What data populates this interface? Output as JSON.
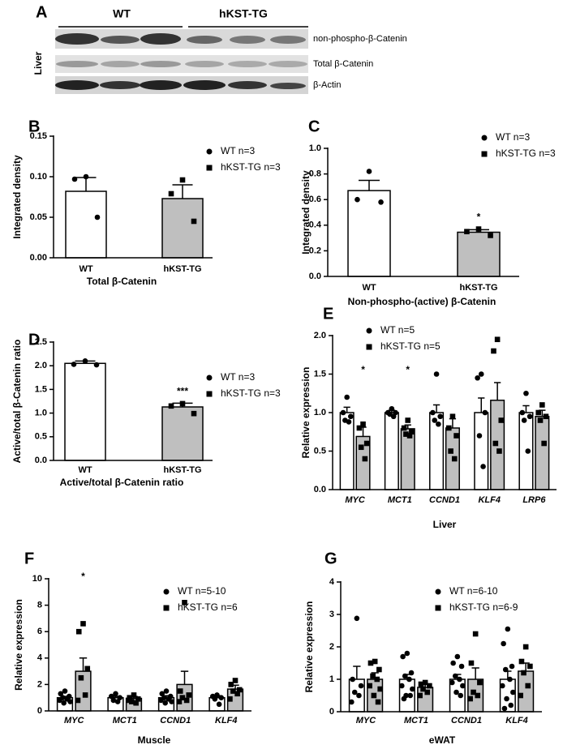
{
  "blot": {
    "panel": "A",
    "groups": [
      "WT",
      "hKST-TG"
    ],
    "tissue": "Liver",
    "bands": [
      "non-phospho-β-Catenin",
      "Total β-Catenin",
      "β-Actin"
    ]
  },
  "chart_data": [
    {
      "type": "bar",
      "panel": "B",
      "xlabel": "Total β-Catenin",
      "ylabel": "Integrated density",
      "categories": [
        "WT",
        "hKST-TG"
      ],
      "values": [
        0.082,
        0.073
      ],
      "errors": [
        0.017,
        0.017
      ],
      "points": [
        [
          0.1,
          0.097,
          0.05
        ],
        [
          0.096,
          0.079,
          0.045
        ]
      ],
      "colors": [
        "#ffffff",
        "#bfbfbf"
      ],
      "markers": [
        "circle",
        "square"
      ],
      "legend": [
        "WT n=3",
        "hKST-TG n=3"
      ],
      "ylim": [
        0,
        0.15
      ],
      "yticks": [
        {
          "value": 0,
          "label": "0.00"
        },
        {
          "value": 0.05,
          "label": "0.05"
        },
        {
          "value": 0.1,
          "label": "0.10"
        },
        {
          "value": 0.15,
          "label": "0.15"
        }
      ]
    },
    {
      "type": "bar",
      "panel": "C",
      "xlabel": "Non-phospho-(active)  β-Catenin",
      "ylabel": "Integrated density",
      "categories": [
        "WT",
        "hKST-TG"
      ],
      "values": [
        0.67,
        0.345
      ],
      "errors": [
        0.08,
        0.02
      ],
      "points": [
        [
          0.82,
          0.6,
          0.58
        ],
        [
          0.37,
          0.35,
          0.32
        ]
      ],
      "annotations": [
        null,
        "*"
      ],
      "colors": [
        "#ffffff",
        "#bfbfbf"
      ],
      "markers": [
        "circle",
        "square"
      ],
      "legend": [
        "WT n=3",
        "hKST-TG n=3"
      ],
      "ylim": [
        0,
        1
      ],
      "yticks": [
        {
          "value": 0,
          "label": "0.0"
        },
        0.2,
        0.4,
        0.6,
        0.8,
        {
          "value": 1,
          "label": "1.0"
        }
      ]
    },
    {
      "type": "bar",
      "panel": "D",
      "xlabel": "Active/total β-Catenin ratio",
      "ylabel": "Active/total β-Catenin ratio",
      "categories": [
        "WT",
        "hKST-TG"
      ],
      "values": [
        2.05,
        1.13
      ],
      "errors": [
        0.05,
        0.08
      ],
      "points": [
        [
          2.1,
          2.03,
          2.02
        ],
        [
          1.2,
          1.15,
          0.99
        ]
      ],
      "annotations": [
        null,
        "***"
      ],
      "colors": [
        "#ffffff",
        "#bfbfbf"
      ],
      "markers": [
        "circle",
        "square"
      ],
      "legend": [
        "WT n=3",
        "hKST-TG n=3"
      ],
      "ylim": [
        0,
        2.5
      ],
      "yticks": [
        {
          "value": 0,
          "label": "0.0"
        },
        0.5,
        {
          "value": 1,
          "label": "1.0"
        },
        1.5,
        {
          "value": 2,
          "label": "2.0"
        },
        2.5
      ]
    },
    {
      "type": "grouped-bar",
      "panel": "E",
      "xlabel": "Liver",
      "ylabel": "Relative expression",
      "categories": [
        "MYC",
        "MCT1",
        "CCND1",
        "KLF4",
        "LRP6"
      ],
      "series": [
        {
          "name": "WT n=5",
          "color": "#ffffff",
          "marker": "circle",
          "values": [
            1,
            1,
            1,
            1,
            1
          ],
          "errors": [
            0.07,
            0.03,
            0.1,
            0.19,
            0.09
          ],
          "points": [
            [
              1.2,
              1.0,
              0.95,
              0.9,
              0.88
            ],
            [
              1.05,
              1.0,
              1.0,
              0.98,
              0.95
            ],
            [
              1.5,
              1.0,
              0.95,
              0.9,
              0.85
            ],
            [
              1.5,
              1.45,
              1.0,
              0.7,
              0.3
            ],
            [
              1.25,
              1.0,
              0.95,
              0.9,
              0.5
            ]
          ]
        },
        {
          "name": "hKST-TG n=5",
          "color": "#bfbfbf",
          "marker": "square",
          "values": [
            0.69,
            0.79,
            0.8,
            1.16,
            0.95
          ],
          "errors": [
            0.12,
            0.05,
            0.12,
            0.23,
            0.08
          ],
          "points": [
            [
              0.85,
              0.8,
              0.6,
              0.55,
              0.4
            ],
            [
              0.9,
              0.8,
              0.75,
              0.72,
              0.7
            ],
            [
              0.95,
              0.8,
              0.7,
              0.5,
              0.4
            ],
            [
              1.95,
              1.8,
              0.9,
              0.6,
              0.5
            ],
            [
              1.1,
              1.0,
              0.95,
              0.9,
              0.6
            ]
          ],
          "annotations": [
            "*",
            "*",
            null,
            null,
            null
          ]
        }
      ],
      "ylim": [
        0,
        2
      ],
      "yticks": [
        {
          "value": 0,
          "label": "0.0"
        },
        0.5,
        {
          "value": 1,
          "label": "1.0"
        },
        1.5,
        {
          "value": 2,
          "label": "2.0"
        }
      ]
    },
    {
      "type": "grouped-bar",
      "panel": "F",
      "xlabel": "Muscle",
      "ylabel": "Relative expression",
      "categories": [
        "MYC",
        "MCT1",
        "CCND1",
        "KLF4"
      ],
      "series": [
        {
          "name": "WT n=5-10",
          "color": "#ffffff",
          "marker": "circle",
          "values": [
            1,
            1,
            1,
            1
          ],
          "errors": [
            0.1,
            0.1,
            0.15,
            0.15
          ],
          "points": [
            [
              1.5,
              1.3,
              1.1,
              1.0,
              0.9,
              0.8,
              0.7,
              0.6
            ],
            [
              1.3,
              1.1,
              1.0,
              0.8,
              0.7
            ],
            [
              1.5,
              1.3,
              1.1,
              1.0,
              0.9,
              0.8,
              0.7,
              0.6
            ],
            [
              1.2,
              1.1,
              1.0,
              0.9,
              0.5
            ]
          ]
        },
        {
          "name": "hKST-TG n=6",
          "color": "#bfbfbf",
          "marker": "square",
          "values": [
            3,
            0.95,
            2,
            1.65
          ],
          "errors": [
            1,
            0.15,
            1,
            0.3
          ],
          "points": [
            [
              6.6,
              6.0,
              3.2,
              2.5,
              1.2,
              0.8
            ],
            [
              1.2,
              1.0,
              0.9,
              0.7,
              0.6,
              0.8
            ],
            [
              8.2,
              1.5,
              1.2,
              1.0,
              0.8,
              0.7
            ],
            [
              2.3,
              2.0,
              1.6,
              1.5,
              1.3,
              0.9
            ]
          ],
          "annotations": [
            "*",
            null,
            null,
            null
          ]
        }
      ],
      "ylim": [
        0,
        10
      ],
      "yticks": [
        0,
        2,
        4,
        6,
        8,
        10
      ]
    },
    {
      "type": "grouped-bar",
      "panel": "G",
      "xlabel": "eWAT",
      "ylabel": "Relative expression",
      "categories": [
        "MYC",
        "MCT1",
        "CCND1",
        "KLF4"
      ],
      "series": [
        {
          "name": "WT n=6-10",
          "color": "#ffffff",
          "marker": "circle",
          "values": [
            1,
            1,
            1,
            1
          ],
          "errors": [
            0.4,
            0.15,
            0.15,
            0.25
          ],
          "points": [
            [
              2.88,
              1.0,
              0.8,
              0.6,
              0.5,
              0.3
            ],
            [
              1.8,
              1.7,
              1.2,
              1.1,
              1.0,
              0.8,
              0.7,
              0.5,
              0.5,
              0.4
            ],
            [
              1.7,
              1.5,
              1.4,
              1.1,
              1.0,
              0.9,
              0.8,
              0.6,
              0.5
            ],
            [
              2.55,
              2.1,
              1.4,
              1.3,
              1.0,
              0.8,
              0.6,
              0.4,
              0.2,
              0.1
            ]
          ]
        },
        {
          "name": "hKST-TG n=6-9",
          "color": "#bfbfbf",
          "marker": "square",
          "values": [
            1,
            0.75,
            1,
            1.25
          ],
          "errors": [
            0.2,
            0.1,
            0.35,
            0.25
          ],
          "points": [
            [
              1.55,
              1.5,
              1.3,
              1.1,
              1.0,
              0.8,
              0.7,
              0.5,
              0.3
            ],
            [
              0.9,
              0.85,
              0.8,
              0.7,
              0.6,
              0.5
            ],
            [
              2.4,
              1.5,
              0.9,
              0.6,
              0.5,
              0.4
            ],
            [
              2.0,
              1.55,
              1.4,
              1.2,
              0.8,
              0.5
            ]
          ]
        }
      ],
      "ylim": [
        0,
        4
      ],
      "yticks": [
        0,
        1,
        2,
        3,
        4
      ]
    }
  ]
}
